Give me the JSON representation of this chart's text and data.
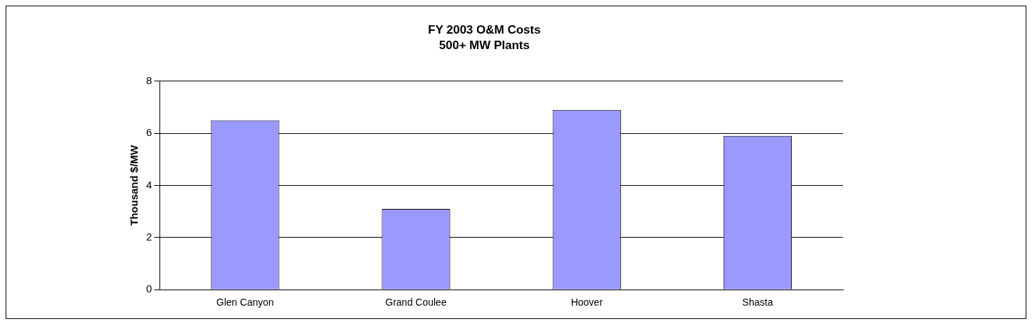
{
  "chart_data": {
    "type": "bar",
    "title": "FY 2003 O&M Costs",
    "subtitle": "500+ MW Plants",
    "ylabel": "Thousand $/MW",
    "categories": [
      "Glen Canyon",
      "Grand Coulee",
      "Hoover",
      "Shasta"
    ],
    "values": [
      6.5,
      3.1,
      6.9,
      5.9
    ],
    "color": "#9999ff",
    "ylim": [
      0,
      8
    ],
    "yticks": [
      0,
      2,
      4,
      6,
      8
    ],
    "grid": "y",
    "legend": false
  }
}
